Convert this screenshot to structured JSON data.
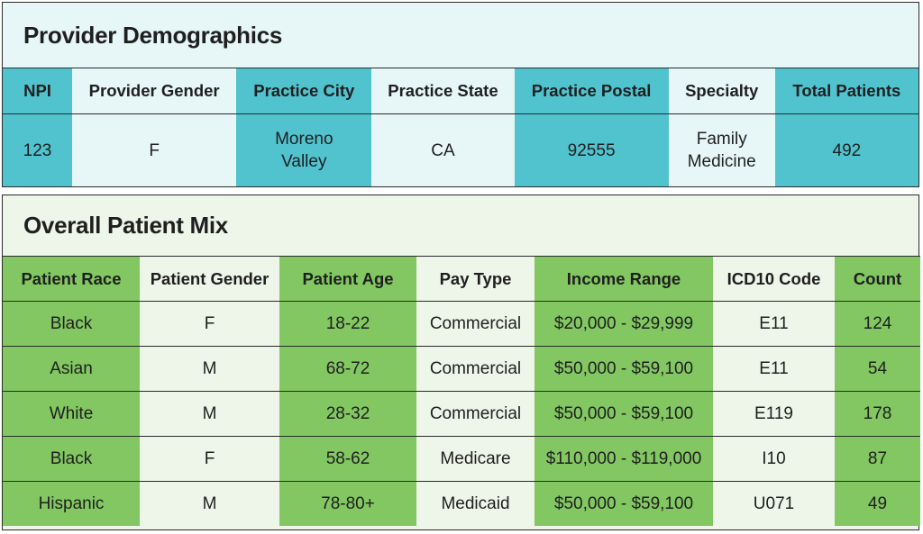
{
  "provider": {
    "title": "Provider Demographics",
    "headers": [
      "NPI",
      "Provider Gender",
      "Practice City",
      "Practice State",
      "Practice Postal",
      "Specialty",
      "Total Patients"
    ],
    "row": {
      "npi": "123",
      "gender": "F",
      "city_line1": "Moreno",
      "city_line2": "Valley",
      "state": "CA",
      "postal": "92555",
      "specialty_line1": "Family",
      "specialty_line2": "Medicine",
      "total_patients": "492"
    },
    "colors": {
      "header_dark": "#51c3cf",
      "light": "#e7f6f6"
    }
  },
  "mix": {
    "title": "Overall Patient Mix",
    "headers": [
      "Patient Race",
      "Patient Gender",
      "Patient Age",
      "Pay Type",
      "Income Range",
      "ICD10 Code",
      "Count"
    ],
    "rows": [
      [
        "Black",
        "F",
        "18-22",
        "Commercial",
        "$20,000 - $29,999",
        "E11",
        "124"
      ],
      [
        "Asian",
        "M",
        "68-72",
        "Commercial",
        "$50,000 - $59,100",
        "E11",
        "54"
      ],
      [
        "White",
        "M",
        "28-32",
        "Commercial",
        "$50,000 - $59,100",
        "E119",
        "178"
      ],
      [
        "Black",
        "F",
        "58-62",
        "Medicare",
        "$110,000 - $119,000",
        "I10",
        "87"
      ],
      [
        "Hispanic",
        "M",
        "78-80+",
        "Medicaid",
        "$50,000 - $59,100",
        "U071",
        "49"
      ]
    ],
    "colors": {
      "header_dark": "#82c762",
      "light": "#eef5e9"
    }
  }
}
